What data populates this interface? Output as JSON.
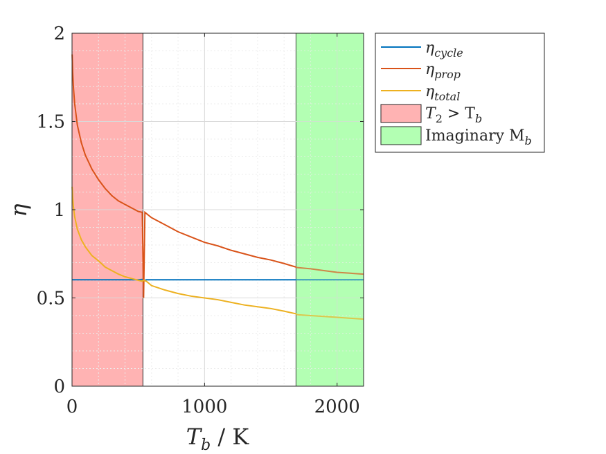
{
  "chart_data": {
    "type": "line",
    "title": "",
    "xlabel": "T_b / K",
    "ylabel": "η",
    "xlim": [
      0,
      2200
    ],
    "ylim": [
      0,
      2
    ],
    "grid": true,
    "minor_grid": true,
    "legend_position": "outside-top-right",
    "x_ticks": [
      {
        "value": 0,
        "label": "0"
      },
      {
        "value": 1000,
        "label": "1000"
      },
      {
        "value": 2000,
        "label": "2000"
      }
    ],
    "y_ticks": [
      {
        "value": 0,
        "label": "0"
      },
      {
        "value": 0.5,
        "label": "0.5"
      },
      {
        "value": 1,
        "label": "1"
      },
      {
        "value": 1.5,
        "label": "1.5"
      },
      {
        "value": 2,
        "label": "2"
      }
    ],
    "regions": [
      {
        "name": "T₂ > T_b",
        "legend_main": "T",
        "legend_sub1": "2",
        "legend_mid": " > T",
        "legend_sub2": "b",
        "x_start": 0,
        "x_end": 535,
        "color": "#ffb3b3"
      },
      {
        "name": "Imaginary M_b",
        "legend_main": "Imaginary M",
        "legend_sub": "b",
        "x_start": 1690,
        "x_end": 2200,
        "color": "#b3ffb3"
      }
    ],
    "series": [
      {
        "name": "η_cycle",
        "legend_sub": "cycle",
        "color": "#0072BD",
        "x": [
          0,
          100,
          200,
          300,
          400,
          500,
          530,
          545,
          560,
          700,
          1000,
          1500,
          1690,
          2000,
          2200
        ],
        "y": [
          0.603,
          0.603,
          0.603,
          0.603,
          0.603,
          0.603,
          0.605,
          0.598,
          0.603,
          0.603,
          0.603,
          0.603,
          0.603,
          0.603,
          0.603
        ]
      },
      {
        "name": "η_prop",
        "legend_sub": "prop",
        "color": "#D95319",
        "x": [
          1,
          5,
          10,
          20,
          40,
          70,
          100,
          150,
          200,
          250,
          300,
          350,
          400,
          450,
          500,
          530,
          540,
          550,
          600,
          700,
          800,
          900,
          1000,
          1100,
          1200,
          1300,
          1400,
          1500,
          1600,
          1690,
          1700,
          1800,
          1900,
          2000,
          2100,
          2200
        ],
        "y": [
          1.88,
          1.78,
          1.7,
          1.6,
          1.48,
          1.38,
          1.31,
          1.23,
          1.17,
          1.12,
          1.08,
          1.05,
          1.03,
          1.01,
          0.99,
          0.985,
          0.5,
          0.985,
          0.955,
          0.915,
          0.875,
          0.845,
          0.815,
          0.795,
          0.77,
          0.75,
          0.73,
          0.715,
          0.695,
          0.675,
          0.672,
          0.665,
          0.655,
          0.645,
          0.64,
          0.635
        ]
      },
      {
        "name": "η_total",
        "legend_sub": "total",
        "color": "#EDB120",
        "x": [
          1,
          5,
          10,
          20,
          40,
          70,
          100,
          150,
          200,
          250,
          300,
          350,
          400,
          450,
          500,
          530,
          540,
          560,
          600,
          700,
          800,
          900,
          1000,
          1100,
          1200,
          1300,
          1400,
          1500,
          1600,
          1690,
          1700,
          1800,
          1900,
          2000,
          2100,
          2200
        ],
        "y": [
          1.13,
          1.07,
          1.02,
          0.96,
          0.89,
          0.83,
          0.79,
          0.74,
          0.71,
          0.675,
          0.655,
          0.635,
          0.62,
          0.61,
          0.6,
          0.595,
          0.6,
          0.595,
          0.57,
          0.545,
          0.525,
          0.51,
          0.5,
          0.49,
          0.475,
          0.46,
          0.45,
          0.44,
          0.425,
          0.41,
          0.405,
          0.4,
          0.395,
          0.39,
          0.385,
          0.38
        ]
      }
    ]
  }
}
